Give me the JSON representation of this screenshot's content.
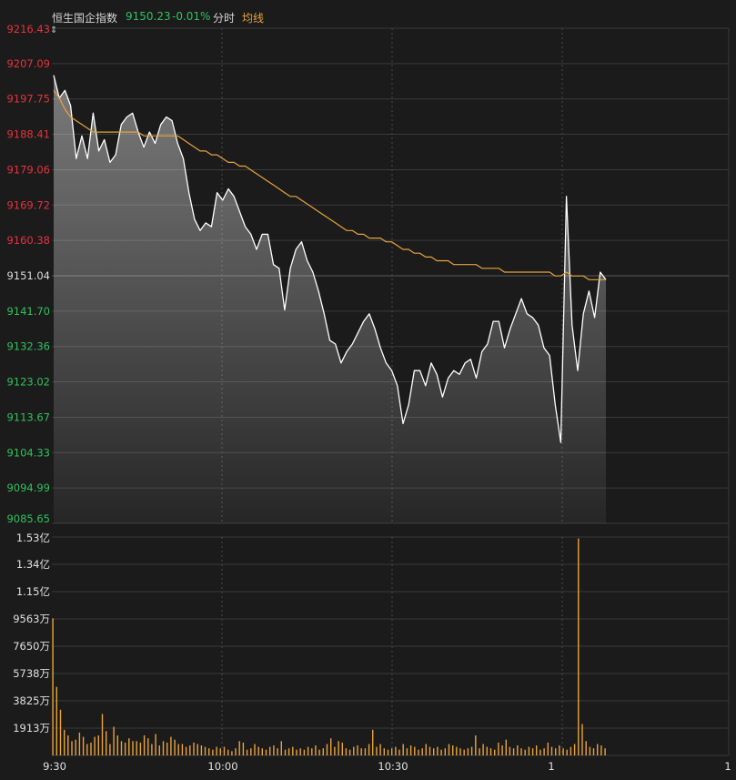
{
  "header": {
    "name": "恒生国企指数",
    "price": "9150.23",
    "change": "-0.01%",
    "period": "分时",
    "avg_label": "均线"
  },
  "colors": {
    "up": "#e8323c",
    "down": "#2fc25b",
    "price_line": "#ffffff",
    "avg_line": "#e8a33d",
    "volume_bar": "#e8a33d",
    "grid": "#3a3a3a",
    "background": "#1b1b1b"
  },
  "chart_data": [
    {
      "type": "line",
      "name": "price-panel",
      "ylim": [
        9085.65,
        9216.43
      ],
      "reference_close": 9151.04,
      "y_ticks": [
        "9216.43",
        "9207.09",
        "9197.75",
        "9188.41",
        "9179.06",
        "9169.72",
        "9160.38",
        "9151.04",
        "9141.70",
        "9132.36",
        "9123.02",
        "9113.67",
        "9104.33",
        "9094.99",
        "9085.65"
      ],
      "x_ticks": [
        "9:30",
        "10:00",
        "10:30",
        "1",
        "1"
      ],
      "price": [
        9204,
        9198,
        9200,
        9196,
        9182,
        9188,
        9182,
        9194,
        9184,
        9187,
        9181,
        9183,
        9191,
        9193,
        9194,
        9189,
        9185,
        9189,
        9186,
        9191,
        9193,
        9192,
        9186,
        9182,
        9173,
        9166,
        9163,
        9165,
        9164,
        9173,
        9171,
        9174,
        9172,
        9168,
        9164,
        9162,
        9158,
        9162,
        9162,
        9154,
        9153,
        9142,
        9153,
        9158,
        9160,
        9155,
        9152,
        9147,
        9141,
        9134,
        9133,
        9128,
        9131,
        9133,
        9136,
        9139,
        9141,
        9137,
        9132,
        9128,
        9126,
        9122,
        9112,
        9117,
        9126,
        9126,
        9122,
        9128,
        9125,
        9119,
        9124,
        9126,
        9125,
        9128,
        9129,
        9124,
        9131,
        9133,
        9139,
        9139,
        9132,
        9137,
        9141,
        9145,
        9141,
        9140,
        9138,
        9132,
        9130,
        9117,
        9107,
        9172,
        9138,
        9126,
        9141,
        9147,
        9140,
        9152,
        9150
      ],
      "avg": [
        9200,
        9198,
        9195,
        9193,
        9192,
        9191,
        9190,
        9189,
        9189,
        9189,
        9189,
        9189,
        9189,
        9189,
        9189,
        9189,
        9188,
        9188,
        9188,
        9188,
        9188,
        9188,
        9188,
        9187,
        9186,
        9185,
        9184,
        9184,
        9183,
        9183,
        9182,
        9181,
        9181,
        9180,
        9180,
        9179,
        9178,
        9177,
        9176,
        9175,
        9174,
        9173,
        9172,
        9172,
        9171,
        9170,
        9169,
        9168,
        9167,
        9166,
        9165,
        9164,
        9163,
        9163,
        9162,
        9162,
        9161,
        9161,
        9161,
        9160,
        9160,
        9159,
        9158,
        9158,
        9157,
        9157,
        9156,
        9156,
        9155,
        9155,
        9155,
        9154,
        9154,
        9154,
        9154,
        9154,
        9153,
        9153,
        9153,
        9153,
        9152,
        9152,
        9152,
        9152,
        9152,
        9152,
        9152,
        9152,
        9152,
        9151,
        9151,
        9152,
        9151,
        9151,
        9151,
        9150,
        9150,
        9150,
        9150
      ]
    },
    {
      "type": "bar",
      "name": "volume-panel",
      "ylim": [
        0,
        1.53
      ],
      "y_ticks": [
        "1.53亿",
        "1.34亿",
        "1.15亿",
        "9563万",
        "7650万",
        "5738万",
        "3825万",
        "1913万"
      ],
      "values": [
        0.96,
        0.48,
        0.32,
        0.18,
        0.14,
        0.1,
        0.11,
        0.16,
        0.13,
        0.08,
        0.09,
        0.13,
        0.14,
        0.29,
        0.17,
        0.08,
        0.2,
        0.14,
        0.1,
        0.09,
        0.12,
        0.1,
        0.1,
        0.09,
        0.14,
        0.12,
        0.08,
        0.15,
        0.07,
        0.1,
        0.09,
        0.13,
        0.11,
        0.08,
        0.08,
        0.06,
        0.07,
        0.09,
        0.08,
        0.07,
        0.06,
        0.05,
        0.04,
        0.06,
        0.05,
        0.06,
        0.04,
        0.03,
        0.05,
        0.1,
        0.09,
        0.04,
        0.05,
        0.08,
        0.06,
        0.05,
        0.04,
        0.06,
        0.07,
        0.05,
        0.1,
        0.04,
        0.05,
        0.06,
        0.04,
        0.05,
        0.04,
        0.06,
        0.05,
        0.07,
        0.04,
        0.05,
        0.08,
        0.12,
        0.06,
        0.1,
        0.09,
        0.05,
        0.04,
        0.06,
        0.07,
        0.05,
        0.05,
        0.08,
        0.18,
        0.06,
        0.08,
        0.05,
        0.04,
        0.05,
        0.06,
        0.04,
        0.08,
        0.05,
        0.07,
        0.06,
        0.04,
        0.05,
        0.08,
        0.06,
        0.05,
        0.06,
        0.04,
        0.05,
        0.08,
        0.07,
        0.06,
        0.05,
        0.04,
        0.05,
        0.06,
        0.14,
        0.05,
        0.08,
        0.06,
        0.05,
        0.04,
        0.09,
        0.07,
        0.11,
        0.06,
        0.05,
        0.07,
        0.05,
        0.04,
        0.06,
        0.05,
        0.07,
        0.04,
        0.05,
        0.09,
        0.06,
        0.05,
        0.07,
        0.05,
        0.04,
        0.06,
        0.08,
        1.52,
        0.22,
        0.1,
        0.06,
        0.05,
        0.08,
        0.07,
        0.05
      ]
    }
  ]
}
